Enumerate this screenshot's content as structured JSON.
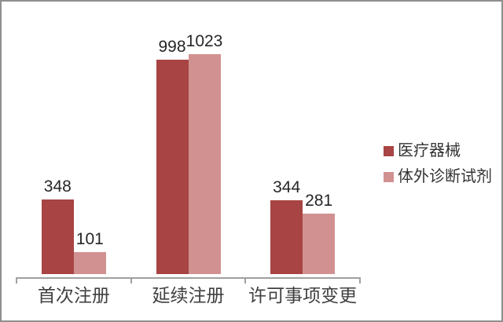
{
  "frame": {
    "background": "#ffffff",
    "border_color": "#8f8f8f"
  },
  "chart_data": {
    "type": "bar",
    "categories": [
      "首次注册",
      "延续注册",
      "许可事项变更"
    ],
    "series": [
      {
        "name": "医疗器械",
        "color": "#a84444",
        "values": [
          348,
          998,
          344
        ]
      },
      {
        "name": "体外诊断试剂",
        "color": "#d29191",
        "values": [
          101,
          1023,
          281
        ]
      }
    ],
    "value_labels": [
      [
        "348",
        "998",
        "344"
      ],
      [
        "101",
        "1023",
        "281"
      ]
    ],
    "title": "",
    "xlabel": "",
    "ylabel": "",
    "ylim": [
      0,
      1100
    ],
    "grid": false,
    "y_axis_shown": false,
    "legend_position": "right",
    "axis_color": "#a0a0a0",
    "category_label_color": "#404040",
    "value_label_color": "#262626"
  }
}
